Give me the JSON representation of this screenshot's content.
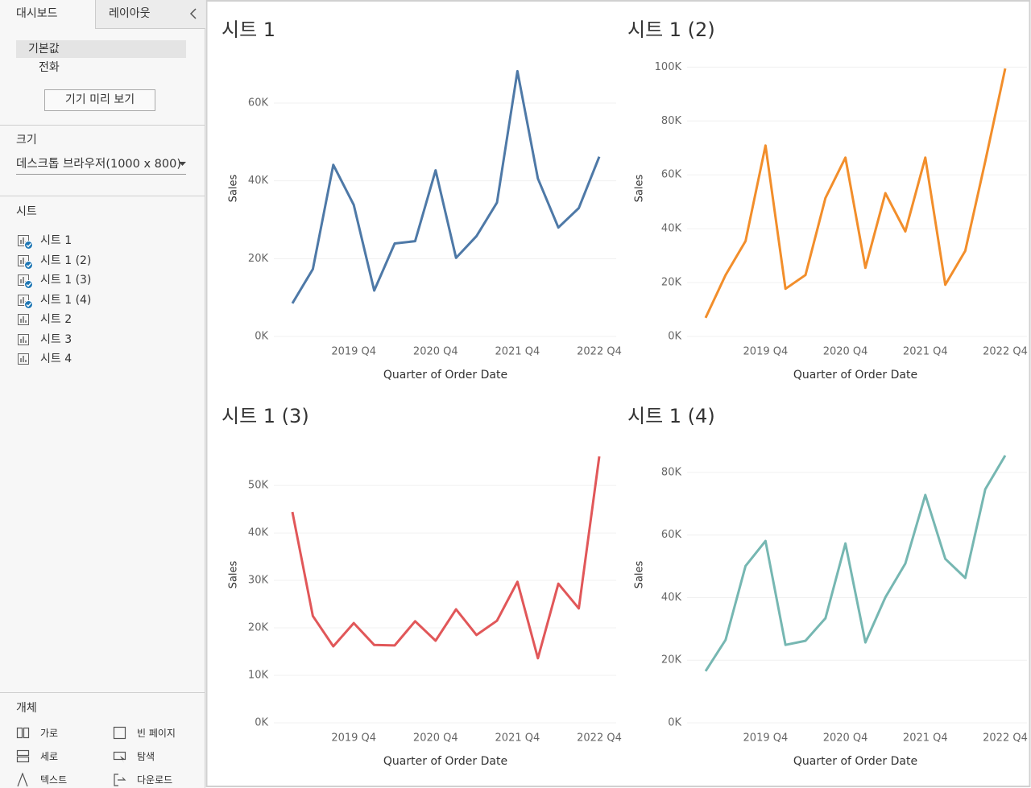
{
  "sidebar": {
    "tabs": [
      "대시보드",
      "레이아웃"
    ],
    "devices": [
      "기본값",
      "전화"
    ],
    "preview_button": "기기 미리 보기",
    "size_heading": "크기",
    "size_value": "데스크톱 브라우저(1000 x 800)",
    "sheets_heading": "시트",
    "sheets": [
      {
        "name": "시트 1",
        "in_use": true
      },
      {
        "name": "시트 1 (2)",
        "in_use": true
      },
      {
        "name": "시트 1 (3)",
        "in_use": true
      },
      {
        "name": "시트 1 (4)",
        "in_use": true
      },
      {
        "name": "시트 2",
        "in_use": false
      },
      {
        "name": "시트 3",
        "in_use": false
      },
      {
        "name": "시트 4",
        "in_use": false
      }
    ],
    "objects_heading": "개체",
    "objects": [
      "가로",
      "빈 페이지",
      "세로",
      "탐색",
      "텍스트",
      "다운로드"
    ]
  },
  "chart_data": [
    {
      "type": "line",
      "title": "시트 1",
      "x_label": "Quarter of Order Date",
      "y_label": "Sales",
      "color": "#4e79a7",
      "grid": true,
      "categories": [
        null,
        null,
        null,
        "2019 Q4",
        null,
        null,
        null,
        "2020 Q4",
        null,
        null,
        null,
        "2021 Q4",
        null,
        null,
        null,
        "2022 Q4"
      ],
      "values": [
        8500,
        17300,
        44100,
        33800,
        11800,
        23900,
        24500,
        42700,
        20200,
        25800,
        34400,
        68200,
        40600,
        28000,
        33000,
        46200
      ],
      "ylim": [
        0,
        72000
      ],
      "yticks": [
        {
          "value": 0,
          "label": "0K"
        },
        {
          "value": 20000,
          "label": "20K"
        },
        {
          "value": 40000,
          "label": "40K"
        },
        {
          "value": 60000,
          "label": "60K"
        }
      ]
    },
    {
      "type": "line",
      "title": "시트 1 (2)",
      "x_label": "Quarter of Order Date",
      "y_label": "Sales",
      "color": "#f28e2b",
      "grid": true,
      "categories": [
        null,
        null,
        null,
        "2019 Q4",
        null,
        null,
        null,
        "2020 Q4",
        null,
        null,
        null,
        "2021 Q4",
        null,
        null,
        null,
        "2022 Q4"
      ],
      "values": [
        6900,
        22800,
        35400,
        70900,
        17700,
        22800,
        51400,
        66400,
        25500,
        53200,
        39000,
        66400,
        19200,
        31800,
        65000,
        99500
      ],
      "ylim": [
        0,
        104000
      ],
      "yticks": [
        {
          "value": 0,
          "label": "0K"
        },
        {
          "value": 20000,
          "label": "20K"
        },
        {
          "value": 40000,
          "label": "40K"
        },
        {
          "value": 60000,
          "label": "60K"
        },
        {
          "value": 80000,
          "label": "80K"
        },
        {
          "value": 100000,
          "label": "100K"
        }
      ]
    },
    {
      "type": "line",
      "title": "시트 1 (3)",
      "x_label": "Quarter of Order Date",
      "y_label": "Sales",
      "color": "#e15759",
      "grid": true,
      "categories": [
        null,
        null,
        null,
        "2019 Q4",
        null,
        null,
        null,
        "2020 Q4",
        null,
        null,
        null,
        "2021 Q4",
        null,
        null,
        null,
        "2022 Q4"
      ],
      "values": [
        44400,
        22500,
        16100,
        21000,
        16400,
        16300,
        21400,
        17300,
        23900,
        18500,
        21500,
        29700,
        13600,
        29300,
        24100,
        56100
      ],
      "ylim": [
        0,
        59000
      ],
      "yticks": [
        {
          "value": 0,
          "label": "0K"
        },
        {
          "value": 10000,
          "label": "10K"
        },
        {
          "value": 20000,
          "label": "20K"
        },
        {
          "value": 30000,
          "label": "30K"
        },
        {
          "value": 40000,
          "label": "40K"
        },
        {
          "value": 50000,
          "label": "50K"
        }
      ]
    },
    {
      "type": "line",
      "title": "시트 1 (4)",
      "x_label": "Quarter of Order Date",
      "y_label": "Sales",
      "color": "#76b7b2",
      "grid": true,
      "categories": [
        null,
        null,
        null,
        "2019 Q4",
        null,
        null,
        null,
        "2020 Q4",
        null,
        null,
        null,
        "2021 Q4",
        null,
        null,
        null,
        "2022 Q4"
      ],
      "values": [
        16500,
        26500,
        50100,
        58100,
        24900,
        26200,
        33400,
        57300,
        25700,
        40100,
        50900,
        72800,
        52400,
        46300,
        74600,
        85400
      ],
      "ylim": [
        0,
        89500
      ],
      "yticks": [
        {
          "value": 0,
          "label": "0K"
        },
        {
          "value": 20000,
          "label": "20K"
        },
        {
          "value": 40000,
          "label": "40K"
        },
        {
          "value": 60000,
          "label": "60K"
        },
        {
          "value": 80000,
          "label": "80K"
        }
      ]
    }
  ]
}
